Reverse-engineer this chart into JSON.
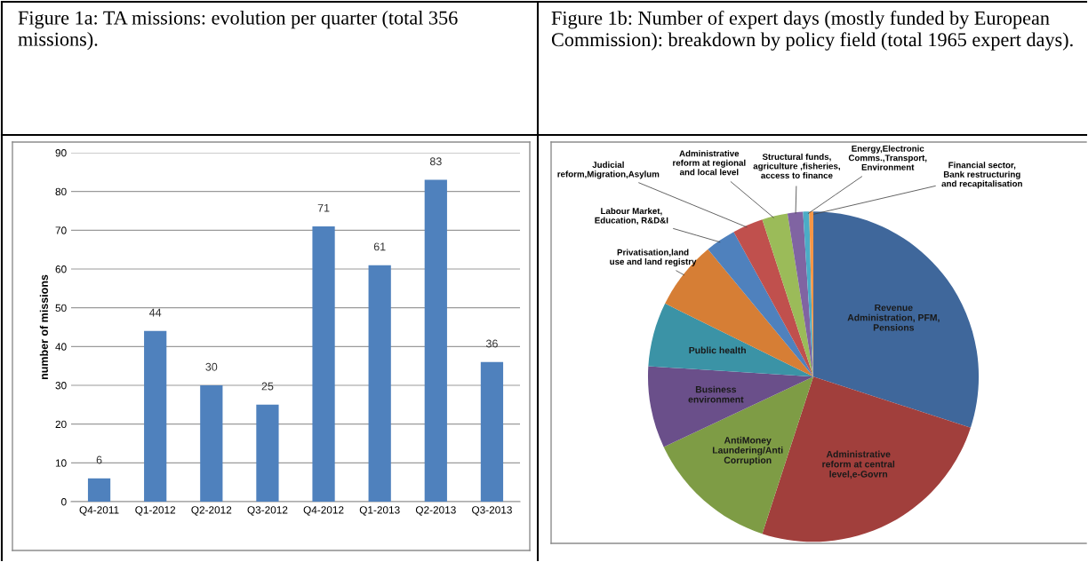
{
  "chart_data": [
    {
      "type": "bar",
      "title": "Figure 1a: TA missions: evolution per quarter (total 356 missions).",
      "ylabel": "number of missions",
      "categories": [
        "Q4-2011",
        "Q1-2012",
        "Q2-2012",
        "Q3-2012",
        "Q4-2012",
        "Q1-2013",
        "Q2-2013",
        "Q3-2013"
      ],
      "values": [
        6,
        44,
        30,
        25,
        71,
        61,
        83,
        36
      ],
      "color": "#4f81bd",
      "ylim": [
        0,
        90
      ],
      "yticks": [
        0,
        10,
        20,
        30,
        40,
        50,
        60,
        70,
        80,
        90
      ],
      "grid": "y",
      "data_labels": true
    },
    {
      "type": "pie",
      "title": "Figure 1b: Number of expert days (mostly funded by European Commission): breakdown by policy field (total 1965 expert days).",
      "categories": [
        "Revenue Administration, PFM, Pensions",
        "Administrative reform at central level,e-Govrn",
        "AntiMoney Laundering/Anti Corruption",
        "Business environment",
        "Public health",
        "Privatisation,land use and land registry",
        "Labour Market, Education, R&D&I",
        "Judicial reform,Migration,Asylum",
        "Administrative reform at regional and local level",
        "Structural funds, agriculture ,fisheries, access to finance",
        "Energy,Electronic Comms.,Transport, Environment",
        "Financial sector, Bank restructuring and recapitalisation"
      ],
      "values": [
        30,
        25,
        13,
        8,
        6.3,
        6.7,
        3,
        3,
        2.5,
        1.5,
        0.6,
        0.4
      ],
      "colors": [
        "#3f679b",
        "#a13f3c",
        "#7e9c45",
        "#6a4f8a",
        "#3b93a6",
        "#d67e35",
        "#4f81bd",
        "#c0504d",
        "#9bbb59",
        "#8064a2",
        "#4bacc6",
        "#f79646"
      ]
    }
  ]
}
